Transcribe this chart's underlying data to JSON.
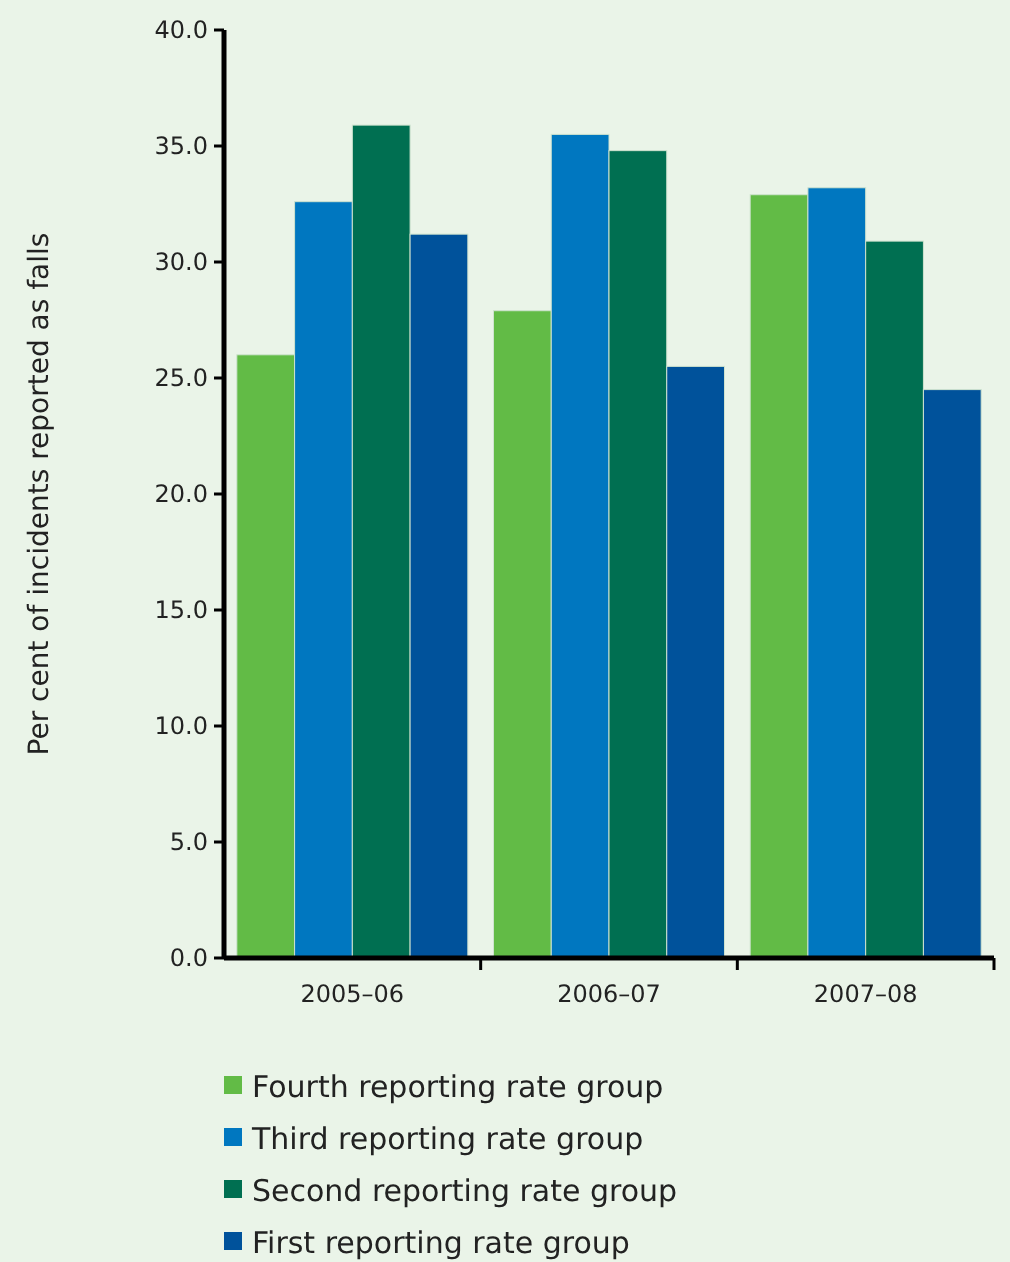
{
  "chart_data": {
    "type": "bar",
    "ylabel": "Per cent of incidents reported as falls",
    "categories": [
      "2005–06",
      "2006–07",
      "2007–08"
    ],
    "series": [
      {
        "name": "Fourth reporting rate group",
        "color": "#62bb46",
        "values": [
          26.0,
          27.9,
          32.9
        ]
      },
      {
        "name": "Third reporting rate group",
        "color": "#0077c0",
        "values": [
          32.6,
          35.5,
          33.2
        ]
      },
      {
        "name": "Second reporting rate group",
        "color": "#006f51",
        "values": [
          35.9,
          34.8,
          30.9
        ]
      },
      {
        "name": "First reporting rate group",
        "color": "#00529b",
        "values": [
          31.2,
          25.5,
          24.5
        ]
      }
    ],
    "ylim": [
      0,
      40
    ],
    "yticks": [
      {
        "value": 0,
        "label": "0.0"
      },
      {
        "value": 5,
        "label": "5.0"
      },
      {
        "value": 10,
        "label": "10.0"
      },
      {
        "value": 15,
        "label": "15.0"
      },
      {
        "value": 20,
        "label": "20.0"
      },
      {
        "value": 25,
        "label": "25.0"
      },
      {
        "value": 30,
        "label": "30.0"
      },
      {
        "value": 35,
        "label": "35.0"
      },
      {
        "value": 40,
        "label": "40.0"
      }
    ],
    "legend": "bottom",
    "grid": false
  }
}
